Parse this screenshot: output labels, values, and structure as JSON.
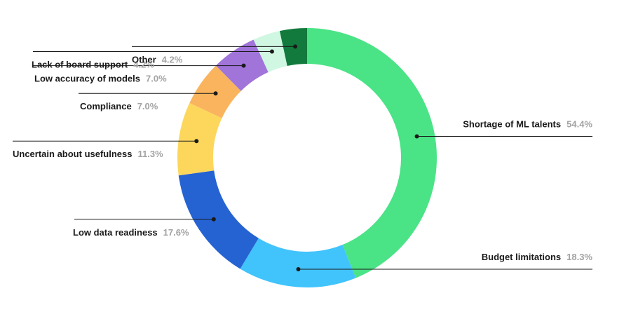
{
  "chart_data": {
    "type": "donut",
    "title": "",
    "unit": "%",
    "slices": [
      {
        "label": "Shortage of ML talents",
        "value": 54.4,
        "pct_label": "54.4%",
        "color": "#4ae386"
      },
      {
        "label": "Budget limitations",
        "value": 18.3,
        "pct_label": "18.3%",
        "color": "#41c3fc"
      },
      {
        "label": "Low data readiness",
        "value": 17.6,
        "pct_label": "17.6%",
        "color": "#2563d3"
      },
      {
        "label": "Uncertain about usefulness",
        "value": 11.3,
        "pct_label": "11.3%",
        "color": "#fcd75c"
      },
      {
        "label": "Compliance",
        "value": 7.0,
        "pct_label": "7.0%",
        "color": "#f9b45d"
      },
      {
        "label": "Low accuracy of models",
        "value": 7.0,
        "pct_label": "7.0%",
        "color": "#a174da"
      },
      {
        "label": "Lack of board support",
        "value": 4.2,
        "pct_label": "4.2%",
        "color": "#cff7e2"
      },
      {
        "label": "Other",
        "value": 4.2,
        "pct_label": "4.2%",
        "color": "#127a3c"
      }
    ]
  }
}
